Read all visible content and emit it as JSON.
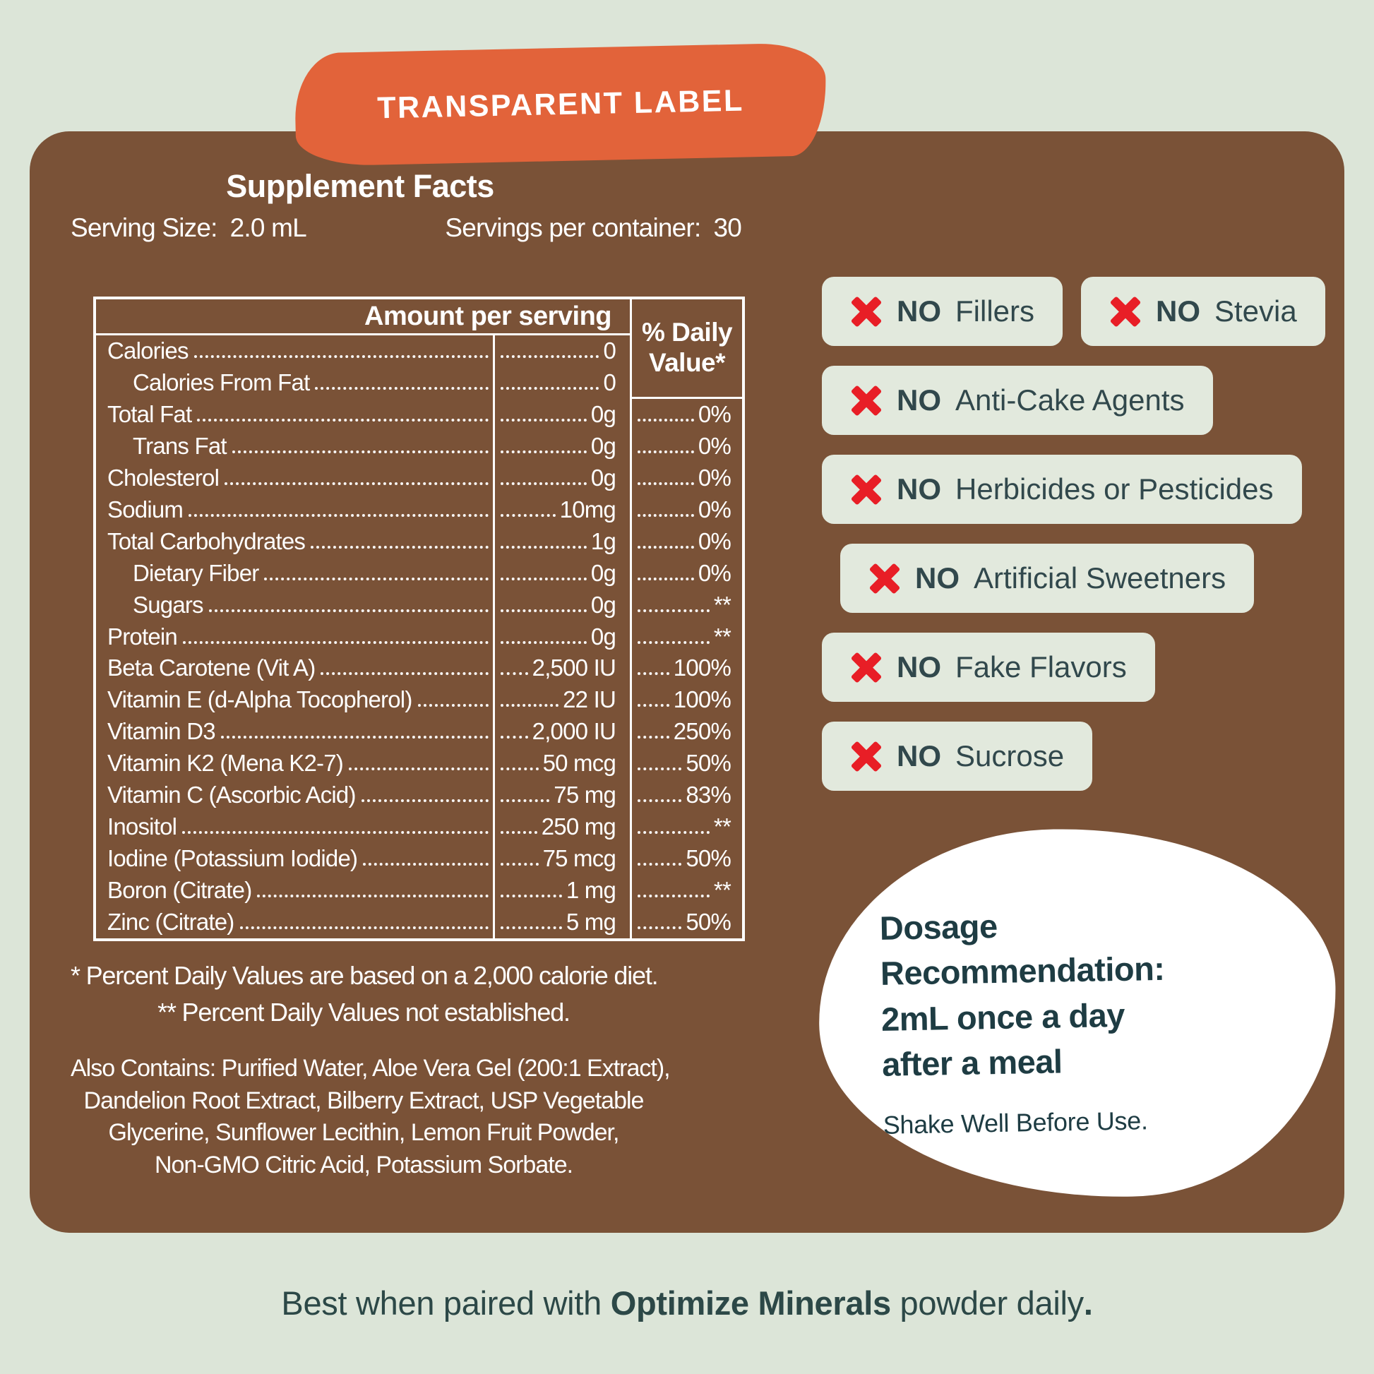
{
  "banner": {
    "label": "TRANSPARENT LABEL"
  },
  "supplement_facts": {
    "title": "Supplement Facts",
    "serving_size_label": "Serving Size:",
    "serving_size_value": "2.0 mL",
    "servings_label": "Servings per container:",
    "servings_value": "30",
    "amount_header": "Amount per serving",
    "dv_header": "% Daily Value*",
    "rows": [
      {
        "label": "Calories",
        "amount": "0",
        "dv": "",
        "indent": false
      },
      {
        "label": "Calories From Fat",
        "amount": "0",
        "dv": "",
        "indent": true
      },
      {
        "label": "Total Fat",
        "amount": "0g",
        "dv": "0%",
        "indent": false
      },
      {
        "label": "Trans Fat",
        "amount": "0g",
        "dv": "0%",
        "indent": true
      },
      {
        "label": "Cholesterol",
        "amount": "0g",
        "dv": "0%",
        "indent": false
      },
      {
        "label": "Sodium",
        "amount": "10mg",
        "dv": "0%",
        "indent": false
      },
      {
        "label": "Total Carbohydrates",
        "amount": "1g",
        "dv": "0%",
        "indent": false
      },
      {
        "label": "Dietary Fiber",
        "amount": "0g",
        "dv": "0%",
        "indent": true
      },
      {
        "label": "Sugars",
        "amount": "0g",
        "dv": "**",
        "indent": true
      },
      {
        "label": "Protein",
        "amount": "0g",
        "dv": "**",
        "indent": false
      },
      {
        "label": "Beta Carotene (Vit A)",
        "amount": "2,500 IU",
        "dv": "100%",
        "indent": false
      },
      {
        "label": "Vitamin E (d-Alpha Tocopherol)",
        "amount": "22 IU",
        "dv": "100%",
        "indent": false
      },
      {
        "label": "Vitamin D3",
        "amount": "2,000 IU",
        "dv": "250%",
        "indent": false
      },
      {
        "label": "Vitamin K2 (Mena K2-7)",
        "amount": "50 mcg",
        "dv": "50%",
        "indent": false
      },
      {
        "label": "Vitamin C (Ascorbic Acid)",
        "amount": "75 mg",
        "dv": "83%",
        "indent": false
      },
      {
        "label": "Inositol",
        "amount": "250 mg",
        "dv": "**",
        "indent": false
      },
      {
        "label": "Iodine (Potassium Iodide)",
        "amount": "75 mcg",
        "dv": "50%",
        "indent": false
      },
      {
        "label": "Boron (Citrate)",
        "amount": "1 mg",
        "dv": "**",
        "indent": false
      },
      {
        "label": "Zinc (Citrate)",
        "amount": "5 mg",
        "dv": "50%",
        "indent": false
      }
    ],
    "footnote1": "* Percent Daily Values are based on a 2,000 calorie diet.",
    "footnote2": "** Percent Daily Values not established.",
    "also_contains_lines": [
      "Also Contains: Purified Water, Aloe Vera Gel (200:1 Extract),",
      "Dandelion Root Extract, Bilberry Extract, USP Vegetable",
      "Glycerine, Sunflower Lecithin, Lemon Fruit Powder,",
      "Non-GMO Citric Acid, Potassium Sorbate."
    ]
  },
  "claims": [
    {
      "no": "NO",
      "text": "Fillers"
    },
    {
      "no": "NO",
      "text": "Stevia"
    },
    {
      "no": "NO",
      "text": "Anti-Cake Agents"
    },
    {
      "no": "NO",
      "text": "Herbicides or Pesticides"
    },
    {
      "no": "NO",
      "text": "Artificial Sweetners"
    },
    {
      "no": "NO",
      "text": "Fake Flavors"
    },
    {
      "no": "NO",
      "text": "Sucrose"
    }
  ],
  "dosage": {
    "heading_lines": [
      "Dosage",
      "Recommendation:",
      "2mL once a day",
      "after a meal"
    ],
    "note": "Shake Well Before Use."
  },
  "footer": {
    "prefix": "Best when paired with ",
    "bold": "Optimize Minerals",
    "suffix": " powder daily",
    "period": "."
  },
  "colors": {
    "background": "#dce5d8",
    "panel_brown": "#7a5237",
    "accent_orange": "#e2633a",
    "badge_bg": "#e2e9dd",
    "x_red": "#e81e26",
    "text_teal": "#2c4847",
    "label_white": "#ffffff"
  }
}
